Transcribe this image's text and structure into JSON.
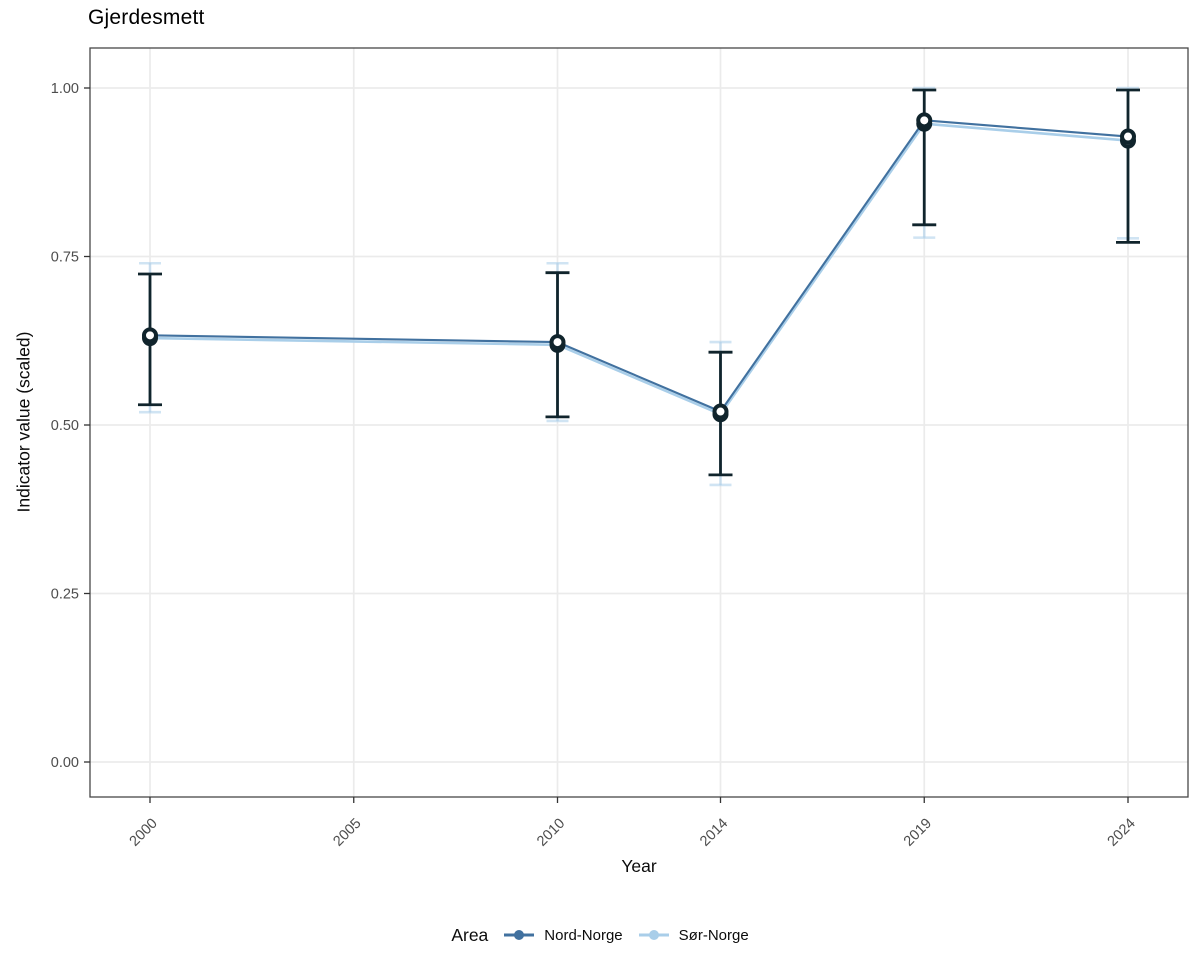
{
  "title": "Gjerdesmett",
  "axes": {
    "x": {
      "label": "Year"
    },
    "y": {
      "label": "Indicator value (scaled)"
    }
  },
  "legend": {
    "title": "Area",
    "items": [
      {
        "label": "Nord-Norge",
        "color": "#41719F"
      },
      {
        "label": "Sør-Norge",
        "color": "#A9CEE9"
      }
    ]
  },
  "colors": {
    "background": "#FFFFFF",
    "gridline": "#EBEBEB",
    "panel_border": "#474747",
    "axis_tick": "#333333",
    "axis_text": "#4D4D4D",
    "title_text": "#000000",
    "marker_ring": "#10242C",
    "marker_fill": "#FFFFFF"
  },
  "chart_data": {
    "type": "line",
    "title": "Gjerdesmett",
    "xlabel": "Year",
    "ylabel": "Indicator value (scaled)",
    "x": [
      2000,
      2010,
      2014,
      2019,
      2024
    ],
    "x_ticks": [
      2000,
      2005,
      2010,
      2014,
      2019,
      2024
    ],
    "y_tick_values": [
      0.0,
      0.25,
      0.5,
      0.75,
      1.0
    ],
    "y_tick_labels": [
      "0.00",
      "0.25",
      "0.50",
      "0.75",
      "1.00"
    ],
    "ylim": [
      0,
      1
    ],
    "grid": true,
    "legend_position": "bottom",
    "marker": "open-circle",
    "error_bars": true,
    "series": [
      {
        "name": "Nord-Norge",
        "color": "#41719F",
        "values": [
          0.633,
          0.623,
          0.52,
          0.952,
          0.928
        ],
        "lower": [
          0.53,
          0.512,
          0.426,
          0.797,
          0.771
        ],
        "upper": [
          0.724,
          0.726,
          0.608,
          0.997,
          0.997
        ],
        "line_width": 2.1,
        "error_color": "#10242C",
        "error_width": 2.8,
        "error_opacity": 1,
        "cap_half": 12
      },
      {
        "name": "Sør-Norge",
        "color": "#A9CEE9",
        "values": [
          0.629,
          0.619,
          0.516,
          0.947,
          0.922
        ],
        "lower": [
          0.519,
          0.506,
          0.411,
          0.778,
          0.777
        ],
        "upper": [
          0.74,
          0.74,
          0.623,
          1.0,
          1.0
        ],
        "line_width": 2.6,
        "error_color": "#A9CEE9",
        "error_width": 2.6,
        "error_opacity": 0.55,
        "cap_half": 11
      }
    ]
  }
}
